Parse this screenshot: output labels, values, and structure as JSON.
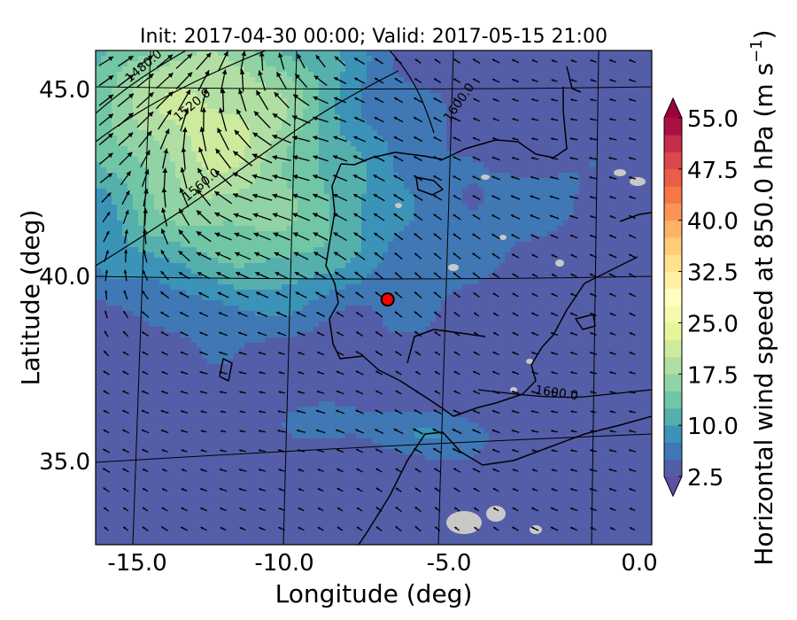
{
  "chart_data": {
    "type": "heatmap",
    "title": "Init: 2017-04-30 00:00; Valid: 2017-05-15 21:00",
    "xlabel": "Longitude (deg)",
    "ylabel": "Latitude (deg)",
    "xlim": [
      -16.0,
      0.0
    ],
    "ylim": [
      32.7,
      46.0
    ],
    "x_ticks": [
      {
        "value": -15.0,
        "label": "-15.0"
      },
      {
        "value": -10.0,
        "label": "-10.0"
      },
      {
        "value": -5.0,
        "label": "-5.0"
      },
      {
        "value": 0.0,
        "label": "0.0"
      }
    ],
    "y_ticks": [
      {
        "value": 35.0,
        "label": "35.0"
      },
      {
        "value": 40.0,
        "label": "40.0"
      },
      {
        "value": 45.0,
        "label": "45.0"
      }
    ],
    "colorbar": {
      "label": "Horizontal wind speed at 850.0 hPa (m s",
      "label_exponent": "−1",
      "label_close": ")",
      "range": [
        2.5,
        55.0
      ],
      "step": 2.5,
      "extend": "both",
      "ticks": [
        {
          "value": 2.5,
          "label": "2.5"
        },
        {
          "value": 10.0,
          "label": "10.0"
        },
        {
          "value": 17.5,
          "label": "17.5"
        },
        {
          "value": 25.0,
          "label": "25.0"
        },
        {
          "value": 32.5,
          "label": "32.5"
        },
        {
          "value": 40.0,
          "label": "40.0"
        },
        {
          "value": 47.5,
          "label": "47.5"
        },
        {
          "value": 55.0,
          "label": "55.0"
        }
      ]
    },
    "geopotential_contours": [
      {
        "value": 1480.0,
        "label": "1480.0"
      },
      {
        "value": 1520.0,
        "label": "1520.0"
      },
      {
        "value": 1560.0,
        "label": "1560.0"
      },
      {
        "value": 1600.0,
        "label": "1600.0"
      }
    ],
    "marker": {
      "lon": -7.6,
      "lat": 39.3
    },
    "colors": {
      "speed_low": "#5e4fa2",
      "speed_mid": "#66c2a5",
      "speed_high": "#e6f598",
      "missing": "#c8c8c8",
      "marker": "#ff0000"
    }
  }
}
